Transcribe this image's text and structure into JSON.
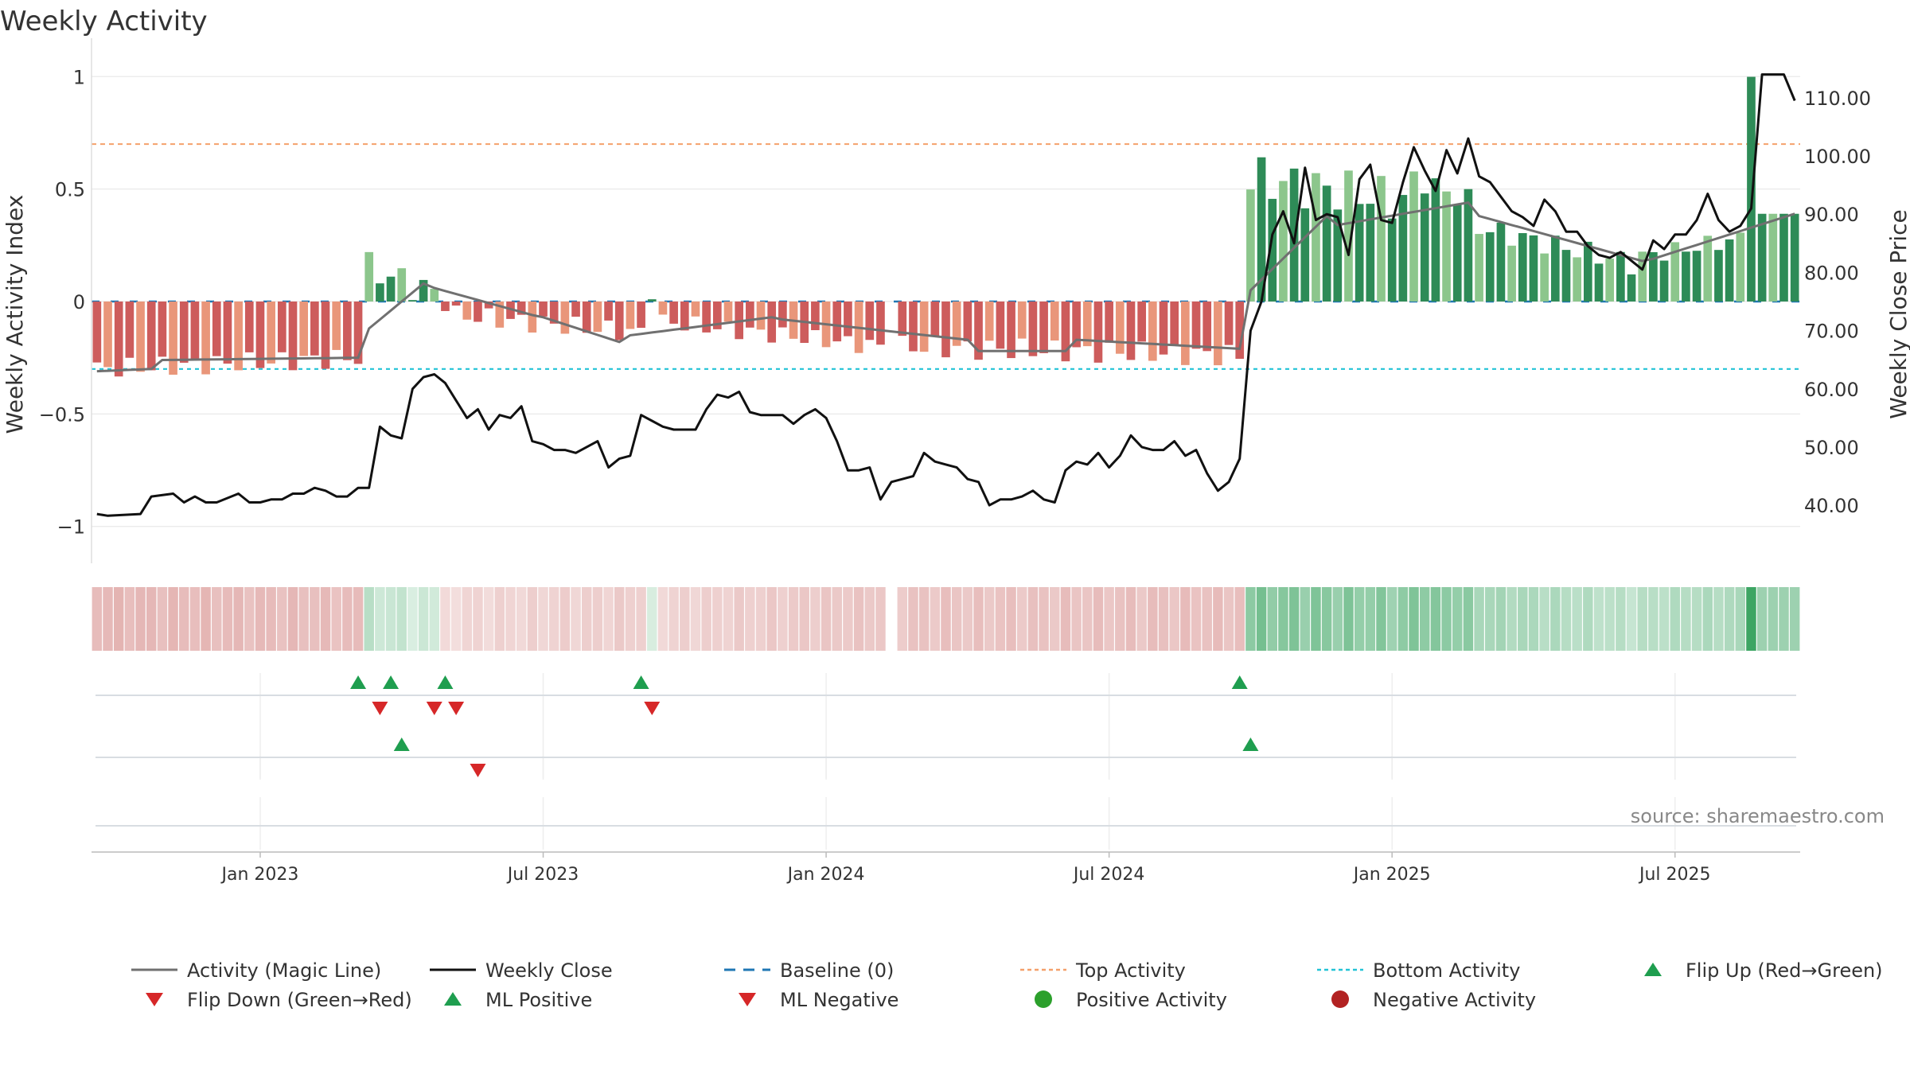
{
  "chart_data": {
    "type": "bar",
    "title": "Weekly Activity",
    "ylabel": "Weekly Activity Index",
    "y2label": "Weekly Close Price",
    "ylim": [
      -1.1,
      1.1
    ],
    "y2lim": [
      32.5,
      117.5
    ],
    "yticks": [
      {
        "v": 1,
        "label": "1"
      },
      {
        "v": 0.5,
        "label": "0.5"
      },
      {
        "v": 0,
        "label": "0"
      },
      {
        "v": -0.5,
        "label": "−0.5"
      },
      {
        "v": -1,
        "label": "−1"
      }
    ],
    "y2ticks": [
      {
        "v": 40,
        "label": "40.00"
      },
      {
        "v": 50,
        "label": "50.00"
      },
      {
        "v": 60,
        "label": "60.00"
      },
      {
        "v": 70,
        "label": "70.00"
      },
      {
        "v": 80,
        "label": "80.00"
      },
      {
        "v": 90,
        "label": "90.00"
      },
      {
        "v": 100,
        "label": "100.00"
      },
      {
        "v": 110,
        "label": "110.00"
      }
    ],
    "xticks": [
      {
        "i": 15,
        "label": "Jan 2023"
      },
      {
        "i": 41,
        "label": "Jul 2023"
      },
      {
        "i": 67,
        "label": "Jan 2024"
      },
      {
        "i": 93,
        "label": "Jul 2024"
      },
      {
        "i": 119,
        "label": "Jan 2025"
      },
      {
        "i": 145,
        "label": "Jul 2025"
      }
    ],
    "top_activity": 0.7,
    "bottom_activity": -0.3,
    "baseline": 0,
    "weeks": 157,
    "activity_segments": [
      {
        "from": 0,
        "to": 24,
        "start": -0.3,
        "end": -0.25,
        "noise": 0.045
      },
      {
        "from": 25,
        "to": 32,
        "start": 0.15,
        "end": 0.02,
        "noise": 0.07
      },
      {
        "from": 33,
        "to": 50,
        "start": -0.06,
        "end": -0.14,
        "noise": 0.045
      },
      {
        "from": 51,
        "to": 51,
        "start": 0.01,
        "end": 0.01,
        "noise": 0.0
      },
      {
        "from": 52,
        "to": 72,
        "start": -0.09,
        "end": -0.2,
        "noise": 0.04
      },
      {
        "from": 73,
        "to": 73,
        "start": 0,
        "end": 0,
        "noise": 0.0
      },
      {
        "from": 74,
        "to": 105,
        "start": -0.2,
        "end": -0.24,
        "noise": 0.05
      },
      {
        "from": 106,
        "to": 120,
        "start": 0.55,
        "end": 0.45,
        "noise": 0.1
      },
      {
        "from": 121,
        "to": 126,
        "start": 0.55,
        "end": 0.45,
        "noise": 0.05
      },
      {
        "from": 127,
        "to": 141,
        "start": 0.33,
        "end": 0.17,
        "noise": 0.05
      },
      {
        "from": 142,
        "to": 151,
        "start": 0.2,
        "end": 0.28,
        "noise": 0.04
      },
      {
        "from": 152,
        "to": 152,
        "start": 0.999,
        "end": 0.999,
        "noise": 0.0
      },
      {
        "from": 153,
        "to": 156,
        "start": 0.39,
        "end": 0.39,
        "noise": 0.0
      }
    ],
    "magic_line_segments": [
      {
        "from": 0,
        "to": 5,
        "start": -0.31,
        "end": -0.3
      },
      {
        "from": 6,
        "to": 24,
        "start": -0.26,
        "end": -0.25
      },
      {
        "from": 25,
        "to": 30,
        "start": -0.12,
        "end": 0.08
      },
      {
        "from": 31,
        "to": 40,
        "start": 0.06,
        "end": -0.06
      },
      {
        "from": 41,
        "to": 48,
        "start": -0.07,
        "end": -0.18
      },
      {
        "from": 49,
        "to": 62,
        "start": -0.15,
        "end": -0.07
      },
      {
        "from": 63,
        "to": 80,
        "start": -0.08,
        "end": -0.17
      },
      {
        "from": 81,
        "to": 89,
        "start": -0.22,
        "end": -0.22
      },
      {
        "from": 90,
        "to": 105,
        "start": -0.17,
        "end": -0.21
      },
      {
        "from": 106,
        "to": 113,
        "start": 0.05,
        "end": 0.38
      },
      {
        "from": 114,
        "to": 126,
        "start": 0.34,
        "end": 0.44
      },
      {
        "from": 127,
        "to": 142,
        "start": 0.38,
        "end": 0.18
      },
      {
        "from": 143,
        "to": 156,
        "start": 0.19,
        "end": 0.39
      }
    ],
    "weekly_close": [
      {
        "i": 0,
        "v": 38.5
      },
      {
        "i": 1,
        "v": 38.2
      },
      {
        "i": 4,
        "v": 38.5
      },
      {
        "i": 5,
        "v": 41.5
      },
      {
        "i": 7,
        "v": 42.0
      },
      {
        "i": 8,
        "v": 40.5
      },
      {
        "i": 9,
        "v": 41.5
      },
      {
        "i": 10,
        "v": 40.5
      },
      {
        "i": 11,
        "v": 40.5
      },
      {
        "i": 13,
        "v": 42.0
      },
      {
        "i": 14,
        "v": 40.5
      },
      {
        "i": 15,
        "v": 40.5
      },
      {
        "i": 16,
        "v": 41.0
      },
      {
        "i": 17,
        "v": 41.0
      },
      {
        "i": 18,
        "v": 42.0
      },
      {
        "i": 19,
        "v": 42.0
      },
      {
        "i": 20,
        "v": 43.0
      },
      {
        "i": 21,
        "v": 42.5
      },
      {
        "i": 22,
        "v": 41.5
      },
      {
        "i": 23,
        "v": 41.5
      },
      {
        "i": 24,
        "v": 43.0
      },
      {
        "i": 25,
        "v": 43.0
      },
      {
        "i": 26,
        "v": 53.5
      },
      {
        "i": 27,
        "v": 52.0
      },
      {
        "i": 28,
        "v": 51.5
      },
      {
        "i": 29,
        "v": 60.0
      },
      {
        "i": 30,
        "v": 62.0
      },
      {
        "i": 31,
        "v": 62.5
      },
      {
        "i": 32,
        "v": 61.0
      },
      {
        "i": 33,
        "v": 58.0
      },
      {
        "i": 34,
        "v": 55.0
      },
      {
        "i": 35,
        "v": 56.5
      },
      {
        "i": 36,
        "v": 53.0
      },
      {
        "i": 37,
        "v": 55.5
      },
      {
        "i": 38,
        "v": 55.0
      },
      {
        "i": 39,
        "v": 57.0
      },
      {
        "i": 40,
        "v": 51.0
      },
      {
        "i": 41,
        "v": 50.5
      },
      {
        "i": 42,
        "v": 49.5
      },
      {
        "i": 43,
        "v": 49.5
      },
      {
        "i": 44,
        "v": 49.0
      },
      {
        "i": 45,
        "v": 50.0
      },
      {
        "i": 46,
        "v": 51.0
      },
      {
        "i": 47,
        "v": 46.5
      },
      {
        "i": 48,
        "v": 48.0
      },
      {
        "i": 49,
        "v": 48.5
      },
      {
        "i": 50,
        "v": 55.5
      },
      {
        "i": 51,
        "v": 54.5
      },
      {
        "i": 52,
        "v": 53.5
      },
      {
        "i": 53,
        "v": 53.0
      },
      {
        "i": 55,
        "v": 53.0
      },
      {
        "i": 56,
        "v": 56.5
      },
      {
        "i": 57,
        "v": 59.0
      },
      {
        "i": 58,
        "v": 58.5
      },
      {
        "i": 59,
        "v": 59.5
      },
      {
        "i": 60,
        "v": 56.0
      },
      {
        "i": 61,
        "v": 55.5
      },
      {
        "i": 63,
        "v": 55.5
      },
      {
        "i": 64,
        "v": 54.0
      },
      {
        "i": 65,
        "v": 55.5
      },
      {
        "i": 66,
        "v": 56.5
      },
      {
        "i": 67,
        "v": 55.0
      },
      {
        "i": 68,
        "v": 51.0
      },
      {
        "i": 69,
        "v": 46.0
      },
      {
        "i": 70,
        "v": 46.0
      },
      {
        "i": 71,
        "v": 46.5
      },
      {
        "i": 72,
        "v": 41.0
      },
      {
        "i": 73,
        "v": 44.0
      },
      {
        "i": 74,
        "v": 44.5
      },
      {
        "i": 75,
        "v": 45.0
      },
      {
        "i": 76,
        "v": 49.0
      },
      {
        "i": 77,
        "v": 47.5
      },
      {
        "i": 78,
        "v": 47.0
      },
      {
        "i": 79,
        "v": 46.5
      },
      {
        "i": 80,
        "v": 44.5
      },
      {
        "i": 81,
        "v": 44.0
      },
      {
        "i": 82,
        "v": 40.0
      },
      {
        "i": 83,
        "v": 41.0
      },
      {
        "i": 84,
        "v": 41.0
      },
      {
        "i": 85,
        "v": 41.5
      },
      {
        "i": 86,
        "v": 42.5
      },
      {
        "i": 87,
        "v": 41.0
      },
      {
        "i": 88,
        "v": 40.5
      },
      {
        "i": 89,
        "v": 46.0
      },
      {
        "i": 90,
        "v": 47.5
      },
      {
        "i": 91,
        "v": 47.0
      },
      {
        "i": 92,
        "v": 49.0
      },
      {
        "i": 93,
        "v": 46.5
      },
      {
        "i": 94,
        "v": 48.5
      },
      {
        "i": 95,
        "v": 52.0
      },
      {
        "i": 96,
        "v": 50.0
      },
      {
        "i": 97,
        "v": 49.5
      },
      {
        "i": 98,
        "v": 49.5
      },
      {
        "i": 99,
        "v": 51.0
      },
      {
        "i": 100,
        "v": 48.5
      },
      {
        "i": 101,
        "v": 49.5
      },
      {
        "i": 102,
        "v": 45.5
      },
      {
        "i": 103,
        "v": 42.5
      },
      {
        "i": 104,
        "v": 44.0
      },
      {
        "i": 105,
        "v": 48.0
      },
      {
        "i": 106,
        "v": 70.0
      },
      {
        "i": 107,
        "v": 75.0
      },
      {
        "i": 108,
        "v": 86.5
      },
      {
        "i": 109,
        "v": 90.5
      },
      {
        "i": 110,
        "v": 85.0
      },
      {
        "i": 111,
        "v": 98.0
      },
      {
        "i": 112,
        "v": 89.0
      },
      {
        "i": 113,
        "v": 90.0
      },
      {
        "i": 114,
        "v": 89.5
      },
      {
        "i": 115,
        "v": 83.0
      },
      {
        "i": 116,
        "v": 96.0
      },
      {
        "i": 117,
        "v": 98.5
      },
      {
        "i": 118,
        "v": 89.0
      },
      {
        "i": 119,
        "v": 88.5
      },
      {
        "i": 120,
        "v": 95.5
      },
      {
        "i": 121,
        "v": 101.5
      },
      {
        "i": 122,
        "v": 97.5
      },
      {
        "i": 123,
        "v": 94.0
      },
      {
        "i": 124,
        "v": 101.0
      },
      {
        "i": 125,
        "v": 97.0
      },
      {
        "i": 126,
        "v": 103.0
      },
      {
        "i": 127,
        "v": 96.5
      },
      {
        "i": 128,
        "v": 95.5
      },
      {
        "i": 129,
        "v": 93.0
      },
      {
        "i": 130,
        "v": 90.5
      },
      {
        "i": 131,
        "v": 89.5
      },
      {
        "i": 132,
        "v": 88.0
      },
      {
        "i": 133,
        "v": 92.5
      },
      {
        "i": 134,
        "v": 90.5
      },
      {
        "i": 135,
        "v": 87.0
      },
      {
        "i": 136,
        "v": 87.0
      },
      {
        "i": 137,
        "v": 84.5
      },
      {
        "i": 138,
        "v": 83.0
      },
      {
        "i": 139,
        "v": 82.5
      },
      {
        "i": 140,
        "v": 83.5
      },
      {
        "i": 141,
        "v": 82.0
      },
      {
        "i": 142,
        "v": 80.5
      },
      {
        "i": 143,
        "v": 85.5
      },
      {
        "i": 144,
        "v": 84.0
      },
      {
        "i": 145,
        "v": 86.5
      },
      {
        "i": 146,
        "v": 86.5
      },
      {
        "i": 147,
        "v": 89.0
      },
      {
        "i": 148,
        "v": 93.5
      },
      {
        "i": 149,
        "v": 89.0
      },
      {
        "i": 150,
        "v": 87.0
      },
      {
        "i": 151,
        "v": 88.0
      },
      {
        "i": 152,
        "v": 91.0
      },
      {
        "i": 153,
        "v": 114.0
      },
      {
        "i": 154,
        "v": 114.0
      },
      {
        "i": 155,
        "v": 114.0
      },
      {
        "i": 156,
        "v": 109.5
      }
    ],
    "heat_gaps": [
      73
    ],
    "events": {
      "flip_up": [
        24,
        27,
        32,
        50,
        105
      ],
      "flip_down": [
        26,
        31,
        33,
        51
      ],
      "ml_positive": [
        28,
        106
      ],
      "ml_negative": [
        35
      ]
    },
    "source_note": "source: sharemaestro.com",
    "legend": [
      {
        "label": "Activity (Magic Line)",
        "kind": "line",
        "color": "#707070"
      },
      {
        "label": "Weekly Close",
        "kind": "line",
        "color": "#111111"
      },
      {
        "label": "Baseline (0)",
        "kind": "dash",
        "color": "#1f77b4"
      },
      {
        "label": "Top Activity",
        "kind": "dot",
        "color": "#f4a06b"
      },
      {
        "label": "Bottom Activity",
        "kind": "dot",
        "color": "#22c3d6"
      },
      {
        "label": "Flip Up (Red→Green)",
        "kind": "tri-up",
        "color": "#1f9e4f"
      },
      {
        "label": "Flip Down (Green→Red)",
        "kind": "tri-down",
        "color": "#d62728"
      },
      {
        "label": "ML Positive",
        "kind": "tri-up",
        "color": "#1f9e4f"
      },
      {
        "label": "ML Negative",
        "kind": "tri-down",
        "color": "#d62728"
      },
      {
        "label": "Positive Activity",
        "kind": "circle",
        "color": "#2ca02c"
      },
      {
        "label": "Negative Activity",
        "kind": "circle",
        "color": "#b22222"
      }
    ],
    "colors": {
      "pos_strong": "#2e8b57",
      "pos_light": "#8cc68c",
      "neg_strong": "#cd5c5c",
      "neg_light": "#e9967a",
      "magic_line": "#707070",
      "close": "#111111",
      "top_line": "#f4a06b",
      "bottom_line": "#22c3d6",
      "baseline": "#1f77b4",
      "up_marker": "#1f9e4f",
      "down_marker": "#d62728"
    }
  }
}
